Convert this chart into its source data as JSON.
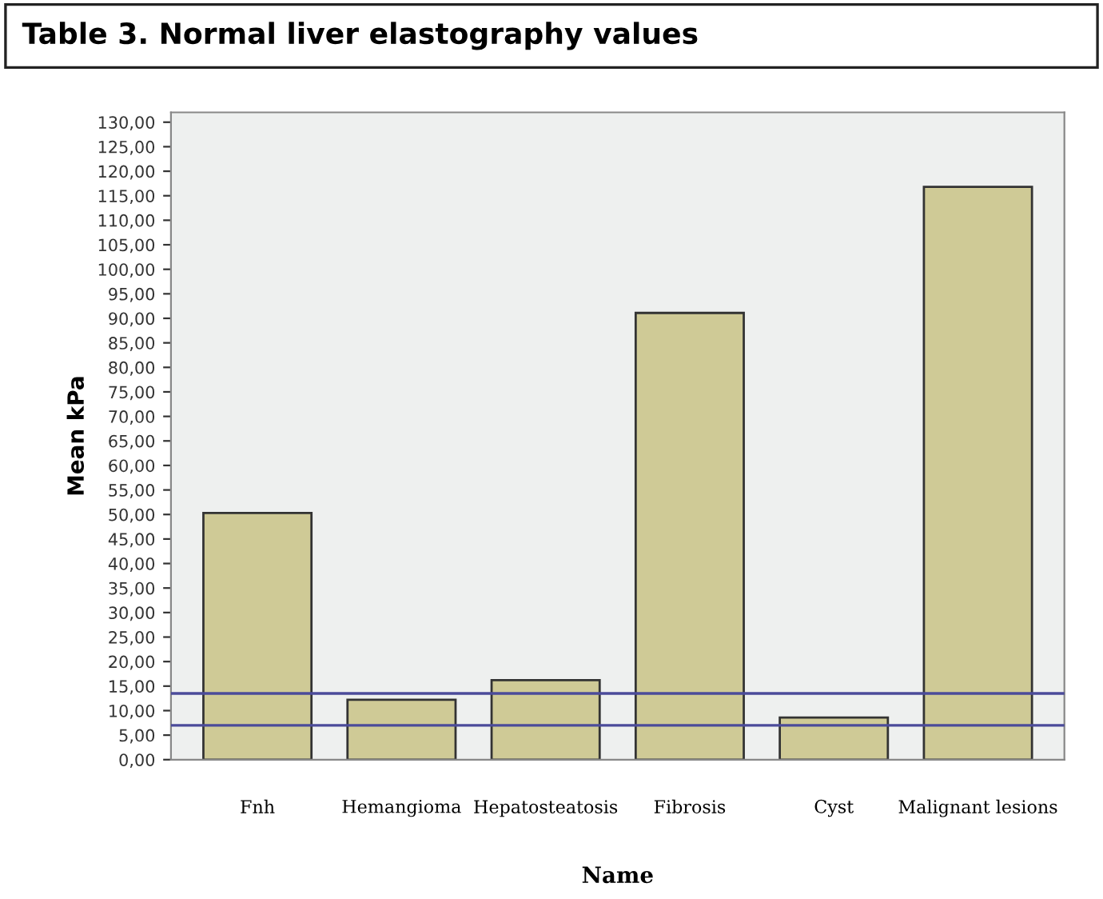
{
  "chart_data": {
    "type": "bar",
    "title": "Table 3. Normal liver elastography values",
    "xlabel": "Name",
    "ylabel": "Mean kPa",
    "categories": [
      "Fnh",
      "Hemangioma",
      "Hepatosteatosis",
      "Fibrosis",
      "Cyst",
      "Malignant lesions"
    ],
    "values": [
      50.3,
      12.2,
      16.2,
      91.1,
      8.6,
      116.8
    ],
    "color": "#cfca96",
    "ylim": [
      0,
      132
    ],
    "yticks": [
      {
        "value": 0,
        "label": "0,00"
      },
      {
        "value": 5,
        "label": "5,00"
      },
      {
        "value": 10,
        "label": "10,00"
      },
      {
        "value": 15,
        "label": "15,00"
      },
      {
        "value": 20,
        "label": "20,00"
      },
      {
        "value": 25,
        "label": "25,00"
      },
      {
        "value": 30,
        "label": "30,00"
      },
      {
        "value": 35,
        "label": "35,00"
      },
      {
        "value": 40,
        "label": "40,00"
      },
      {
        "value": 45,
        "label": "45,00"
      },
      {
        "value": 50,
        "label": "50,00"
      },
      {
        "value": 55,
        "label": "55,00"
      },
      {
        "value": 60,
        "label": "60,00"
      },
      {
        "value": 65,
        "label": "65,00"
      },
      {
        "value": 70,
        "label": "70,00"
      },
      {
        "value": 75,
        "label": "75,00"
      },
      {
        "value": 80,
        "label": "80,00"
      },
      {
        "value": 85,
        "label": "85,00"
      },
      {
        "value": 90,
        "label": "90,00"
      },
      {
        "value": 95,
        "label": "95,00"
      },
      {
        "value": 100,
        "label": "100,00"
      },
      {
        "value": 105,
        "label": "105,00"
      },
      {
        "value": 110,
        "label": "110,00"
      },
      {
        "value": 115,
        "label": "115,00"
      },
      {
        "value": 120,
        "label": "120,00"
      },
      {
        "value": 125,
        "label": "125,00"
      },
      {
        "value": 130,
        "label": "130,00"
      }
    ],
    "ref_lines": [
      {
        "axis": "y",
        "value": 13.5,
        "label": null,
        "color": "#4b4b9a"
      },
      {
        "axis": "y",
        "value": 7,
        "label": null,
        "color": "#4b4b9a"
      }
    ],
    "grid": false
  }
}
